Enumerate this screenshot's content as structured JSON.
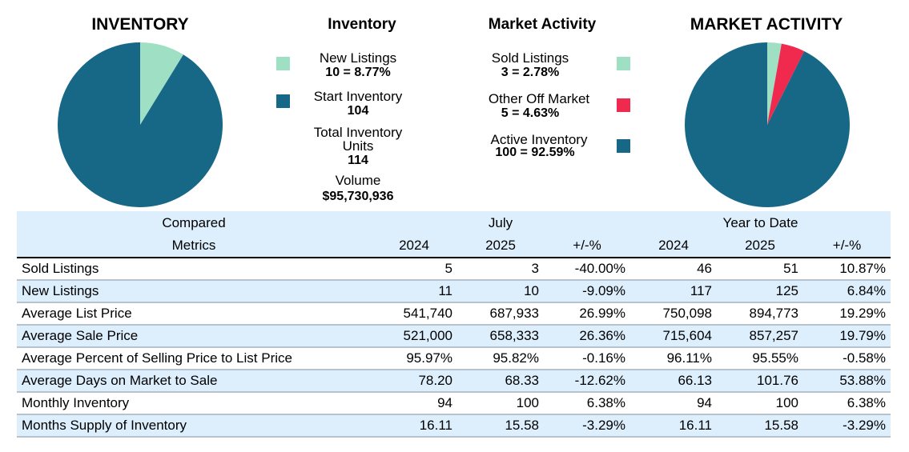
{
  "colors": {
    "light_green": "#9fdfc4",
    "teal": "#176887",
    "red": "#f0294f",
    "header_bg": "#ddeefc"
  },
  "inventory_chart": {
    "title": "INVENTORY"
  },
  "inventory_legend": {
    "title": "Inventory",
    "new_listings_label": "New Listings",
    "new_listings_value": "10 = 8.77%",
    "start_inventory_label": "Start Inventory",
    "start_inventory_value": "104",
    "total_label_line1": "Total Inventory",
    "total_label_line2": "Units",
    "total_value": "114",
    "volume_label": "Volume",
    "volume_value": "$95,730,936"
  },
  "market_legend": {
    "title": "Market Activity",
    "sold_label": "Sold Listings",
    "sold_value": "3 = 2.78%",
    "other_label": "Other Off Market",
    "other_value": "5 = 4.63%",
    "active_label": "Active Inventory",
    "active_value": "100 = 92.59%"
  },
  "market_chart": {
    "title": "MARKET ACTIVITY"
  },
  "chart_data": [
    {
      "type": "pie",
      "title": "INVENTORY",
      "slices": [
        {
          "label": "New Listings",
          "value": 10,
          "percent": 8.77,
          "color": "#9fdfc4"
        },
        {
          "label": "Start Inventory",
          "value": 104,
          "percent": 91.23,
          "color": "#176887"
        }
      ]
    },
    {
      "type": "pie",
      "title": "MARKET ACTIVITY",
      "slices": [
        {
          "label": "Sold Listings",
          "value": 3,
          "percent": 2.78,
          "color": "#9fdfc4"
        },
        {
          "label": "Other Off Market",
          "value": 5,
          "percent": 4.63,
          "color": "#f0294f"
        },
        {
          "label": "Active Inventory",
          "value": 100,
          "percent": 92.59,
          "color": "#176887"
        }
      ]
    },
    {
      "type": "table",
      "groups": [
        "July",
        "Year to Date"
      ],
      "header_left_top": "Compared",
      "header_left_bottom": "Metrics",
      "columns": [
        "2024",
        "2025",
        "+/-%",
        "2024",
        "2025",
        "+/-%"
      ],
      "rows": [
        {
          "metric": "Sold Listings",
          "values": [
            "5",
            "3",
            "-40.00%",
            "46",
            "51",
            "10.87%"
          ]
        },
        {
          "metric": "New Listings",
          "values": [
            "11",
            "10",
            "-9.09%",
            "117",
            "125",
            "6.84%"
          ]
        },
        {
          "metric": "Average List Price",
          "values": [
            "541,740",
            "687,933",
            "26.99%",
            "750,098",
            "894,773",
            "19.29%"
          ]
        },
        {
          "metric": "Average Sale Price",
          "values": [
            "521,000",
            "658,333",
            "26.36%",
            "715,604",
            "857,257",
            "19.79%"
          ]
        },
        {
          "metric": "Average Percent of Selling Price to List Price",
          "values": [
            "95.97%",
            "95.82%",
            "-0.16%",
            "96.11%",
            "95.55%",
            "-0.58%"
          ]
        },
        {
          "metric": "Average Days on Market to Sale",
          "values": [
            "78.20",
            "68.33",
            "-12.62%",
            "66.13",
            "101.76",
            "53.88%"
          ]
        },
        {
          "metric": "Monthly Inventory",
          "values": [
            "94",
            "100",
            "6.38%",
            "94",
            "100",
            "6.38%"
          ]
        },
        {
          "metric": "Months Supply of Inventory",
          "values": [
            "16.11",
            "15.58",
            "-3.29%",
            "16.11",
            "15.58",
            "-3.29%"
          ]
        }
      ]
    }
  ]
}
